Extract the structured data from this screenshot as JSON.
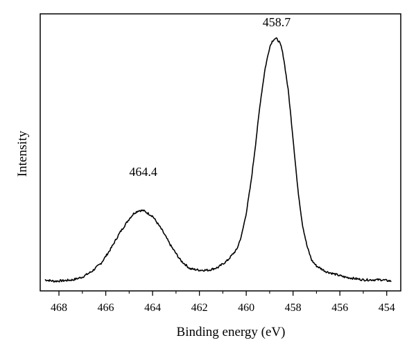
{
  "chart_data": {
    "type": "line",
    "xlabel": "Binding energy (eV)",
    "ylabel": "Intensity",
    "xlim": [
      468.8,
      453.4
    ],
    "ylim": [
      0,
      1.0
    ],
    "x_reversed": true,
    "x_ticks": [
      468,
      466,
      464,
      462,
      460,
      458,
      456,
      454
    ],
    "y_ticks": [],
    "grid": false,
    "legend": "none",
    "line_color": "#000000",
    "annotations": [
      {
        "text": "464.4",
        "x": 464.4,
        "y": 0.37
      },
      {
        "text": "458.7",
        "x": 458.7,
        "y": 0.91
      }
    ],
    "series": [
      {
        "x": [
          468.6,
          468.2,
          467.8,
          467.4,
          467.0,
          466.6,
          466.2,
          465.8,
          465.4,
          465.0,
          464.8,
          464.6,
          464.4,
          464.2,
          464.0,
          463.6,
          463.2,
          462.8,
          462.4,
          462.0,
          461.6,
          461.2,
          460.8,
          460.4,
          460.2,
          460.0,
          459.8,
          459.6,
          459.4,
          459.2,
          459.0,
          458.9,
          458.8,
          458.7,
          458.6,
          458.5,
          458.4,
          458.2,
          458.0,
          457.8,
          457.6,
          457.4,
          457.2,
          457.0,
          456.6,
          456.2,
          455.8,
          455.4,
          455.0,
          454.6,
          454.2,
          453.8
        ],
        "values": [
          0.04,
          0.035,
          0.037,
          0.04,
          0.05,
          0.07,
          0.1,
          0.15,
          0.21,
          0.26,
          0.28,
          0.29,
          0.29,
          0.28,
          0.27,
          0.22,
          0.16,
          0.11,
          0.08,
          0.075,
          0.075,
          0.085,
          0.11,
          0.15,
          0.2,
          0.28,
          0.39,
          0.53,
          0.68,
          0.8,
          0.88,
          0.9,
          0.91,
          0.91,
          0.9,
          0.88,
          0.84,
          0.72,
          0.55,
          0.37,
          0.24,
          0.16,
          0.11,
          0.09,
          0.07,
          0.06,
          0.05,
          0.045,
          0.04,
          0.04,
          0.04,
          0.035
        ]
      }
    ]
  }
}
